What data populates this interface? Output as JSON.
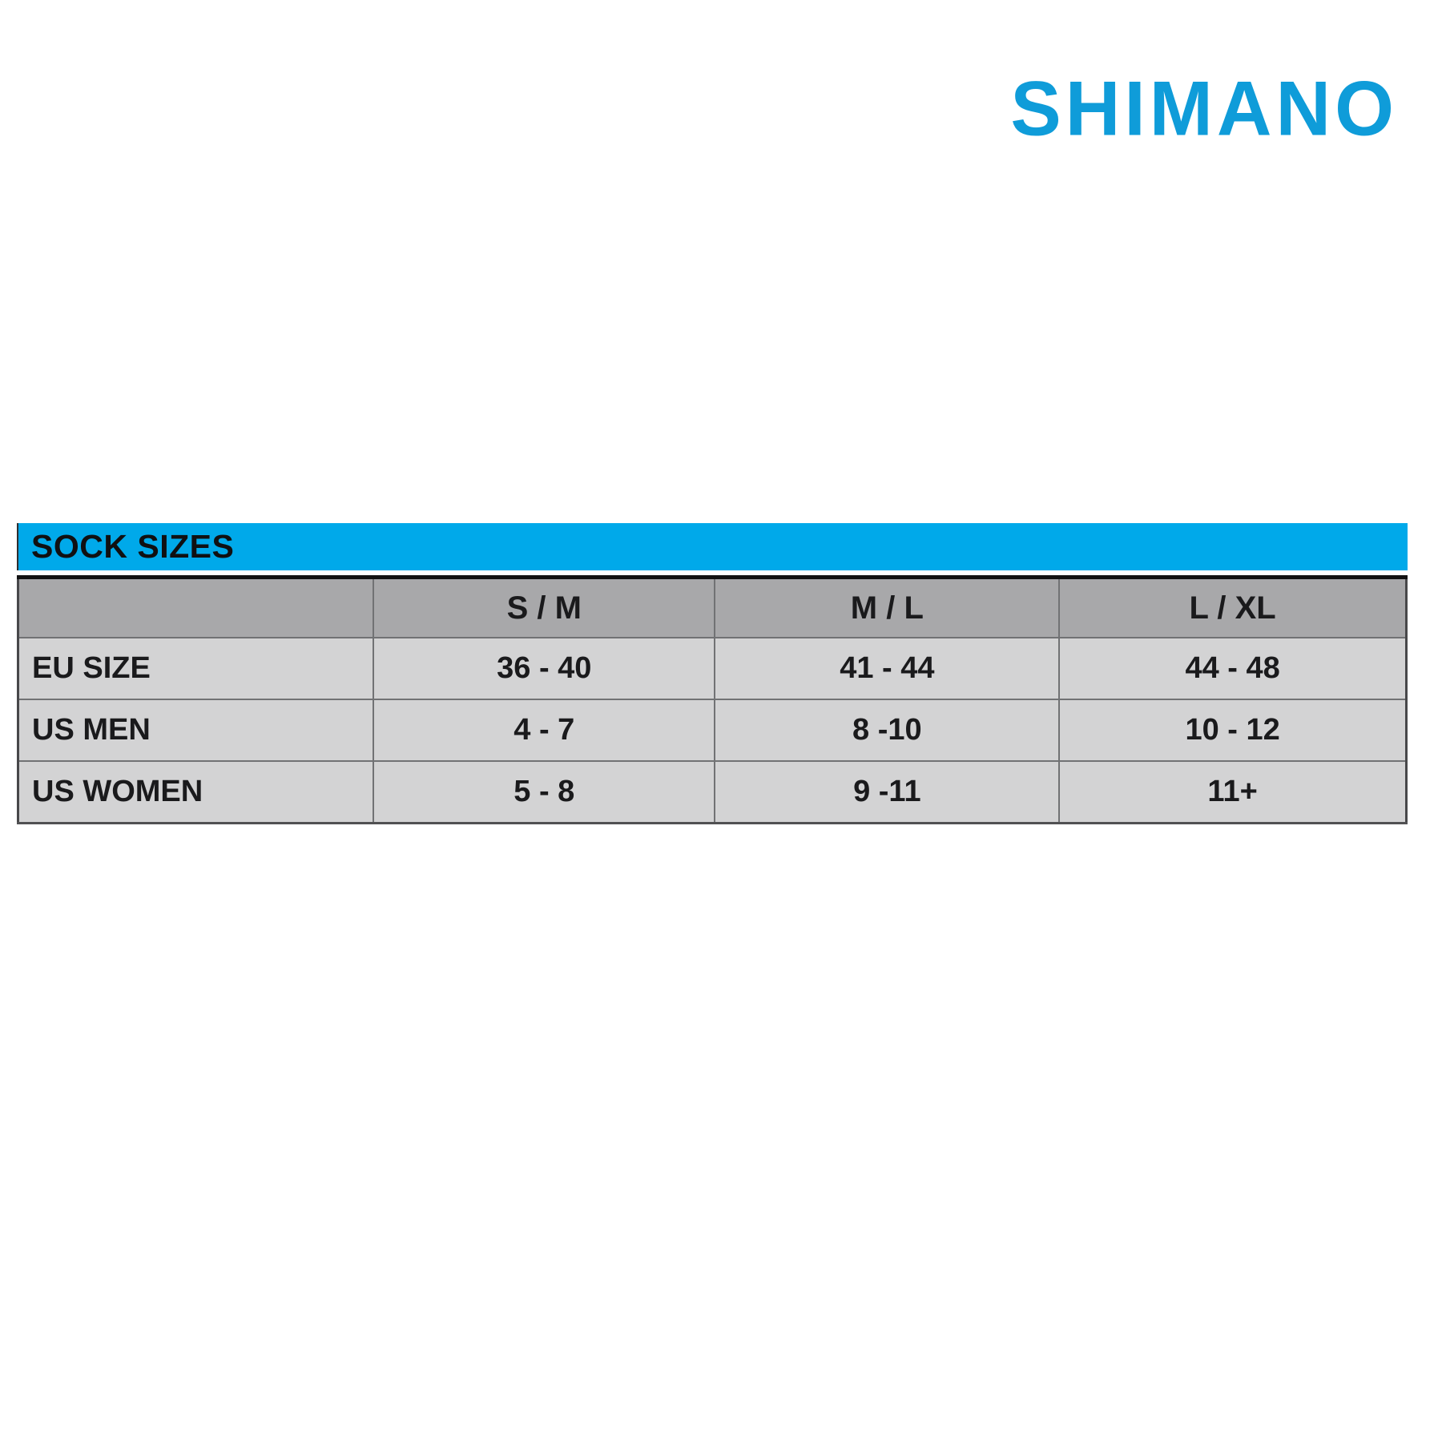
{
  "brand": {
    "logo_text": "SHIMANO",
    "logo_color": "#0F9CD9"
  },
  "size_chart": {
    "title": "SOCK SIZES",
    "title_bar_color": "#00A9EA",
    "header_bg_color": "#A8A8AA",
    "row_bg_color": "#D3D3D4",
    "text_color": "#1A1A1C",
    "columns": [
      "",
      "S / M",
      "M / L",
      "L / XL"
    ],
    "rows": [
      {
        "label": "EU SIZE",
        "values": [
          "36 - 40",
          "41 - 44",
          "44 - 48"
        ]
      },
      {
        "label": "US MEN",
        "values": [
          "4 - 7",
          "8 -10",
          "10 - 12"
        ]
      },
      {
        "label": "US WOMEN",
        "values": [
          "5 - 8",
          "9 -11",
          "11+"
        ]
      }
    ]
  },
  "chart_data": {
    "type": "table",
    "title": "SOCK SIZES",
    "columns": [
      "",
      "S / M",
      "M / L",
      "L / XL"
    ],
    "rows": [
      [
        "EU SIZE",
        "36 - 40",
        "41 - 44",
        "44 - 48"
      ],
      [
        "US MEN",
        "4 - 7",
        "8 -10",
        "10 - 12"
      ],
      [
        "US WOMEN",
        "5 - 8",
        "9 -11",
        "11+"
      ]
    ]
  }
}
